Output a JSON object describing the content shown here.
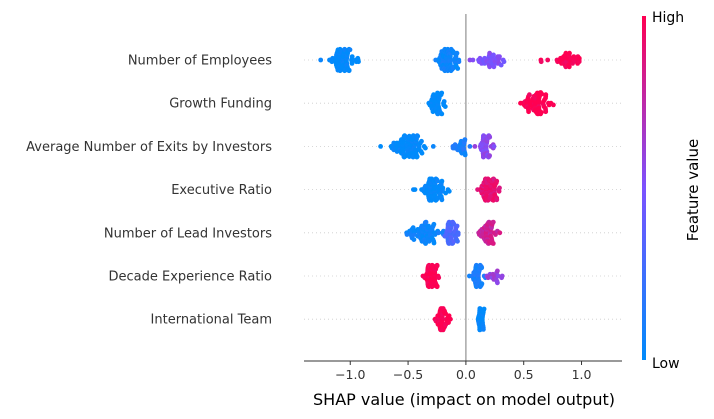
{
  "chart_data": {
    "type": "scatter",
    "subtype": "shap-beeswarm",
    "title": "",
    "xlabel": "SHAP value (impact on model output)",
    "ylabel": "",
    "xlim": [
      -1.4,
      1.35
    ],
    "x_ticks": [
      -1.0,
      -0.5,
      0.0,
      0.5,
      1.0
    ],
    "x_tick_labels": [
      "−1.0",
      "−0.5",
      "0.0",
      "0.5",
      "1.0"
    ],
    "grid": false,
    "colorbar": {
      "title": "Feature value",
      "high_label": "High",
      "low_label": "Low",
      "low_color": "#008bfb",
      "high_color": "#ff0051"
    },
    "features": [
      {
        "name": "Number of Employees",
        "clusters": [
          {
            "center": -1.07,
            "spread": 0.11,
            "count": 90,
            "color": 0.0
          },
          {
            "center": -0.15,
            "spread": 0.08,
            "count": 110,
            "color": 0.05
          },
          {
            "center": 0.22,
            "spread": 0.12,
            "count": 40,
            "color": 0.5
          },
          {
            "center": 0.88,
            "spread": 0.15,
            "count": 40,
            "color": 1.0
          }
        ]
      },
      {
        "name": "Growth Funding",
        "clusters": [
          {
            "center": -0.25,
            "spread": 0.06,
            "count": 45,
            "color": 0.0
          },
          {
            "center": 0.6,
            "spread": 0.12,
            "count": 75,
            "color": 1.0
          }
        ]
      },
      {
        "name": "Average Number of Exits by Investors",
        "clusters": [
          {
            "center": -0.5,
            "spread": 0.14,
            "count": 100,
            "color": 0.0
          },
          {
            "center": -0.05,
            "spread": 0.08,
            "count": 25,
            "color": 0.1
          },
          {
            "center": 0.17,
            "spread": 0.06,
            "count": 60,
            "color": 0.55
          }
        ]
      },
      {
        "name": "Executive Ratio",
        "clusters": [
          {
            "center": -0.28,
            "spread": 0.1,
            "count": 95,
            "color": 0.0
          },
          {
            "center": 0.2,
            "spread": 0.09,
            "count": 80,
            "color": 0.9
          }
        ]
      },
      {
        "name": "Number of Lead Investors",
        "clusters": [
          {
            "center": -0.35,
            "spread": 0.15,
            "count": 70,
            "color": 0.05
          },
          {
            "center": -0.12,
            "spread": 0.06,
            "count": 55,
            "color": 0.3
          },
          {
            "center": 0.2,
            "spread": 0.08,
            "count": 55,
            "color": 0.8
          }
        ]
      },
      {
        "name": "Decade Experience Ratio",
        "clusters": [
          {
            "center": -0.3,
            "spread": 0.07,
            "count": 70,
            "color": 1.0
          },
          {
            "center": 0.1,
            "spread": 0.06,
            "count": 60,
            "color": 0.1
          },
          {
            "center": 0.25,
            "spread": 0.08,
            "count": 18,
            "color": 0.6
          }
        ]
      },
      {
        "name": "International Team",
        "clusters": [
          {
            "center": -0.2,
            "spread": 0.05,
            "count": 70,
            "color": 1.0
          },
          {
            "center": 0.13,
            "spread": 0.03,
            "count": 55,
            "color": 0.0
          }
        ]
      }
    ]
  }
}
